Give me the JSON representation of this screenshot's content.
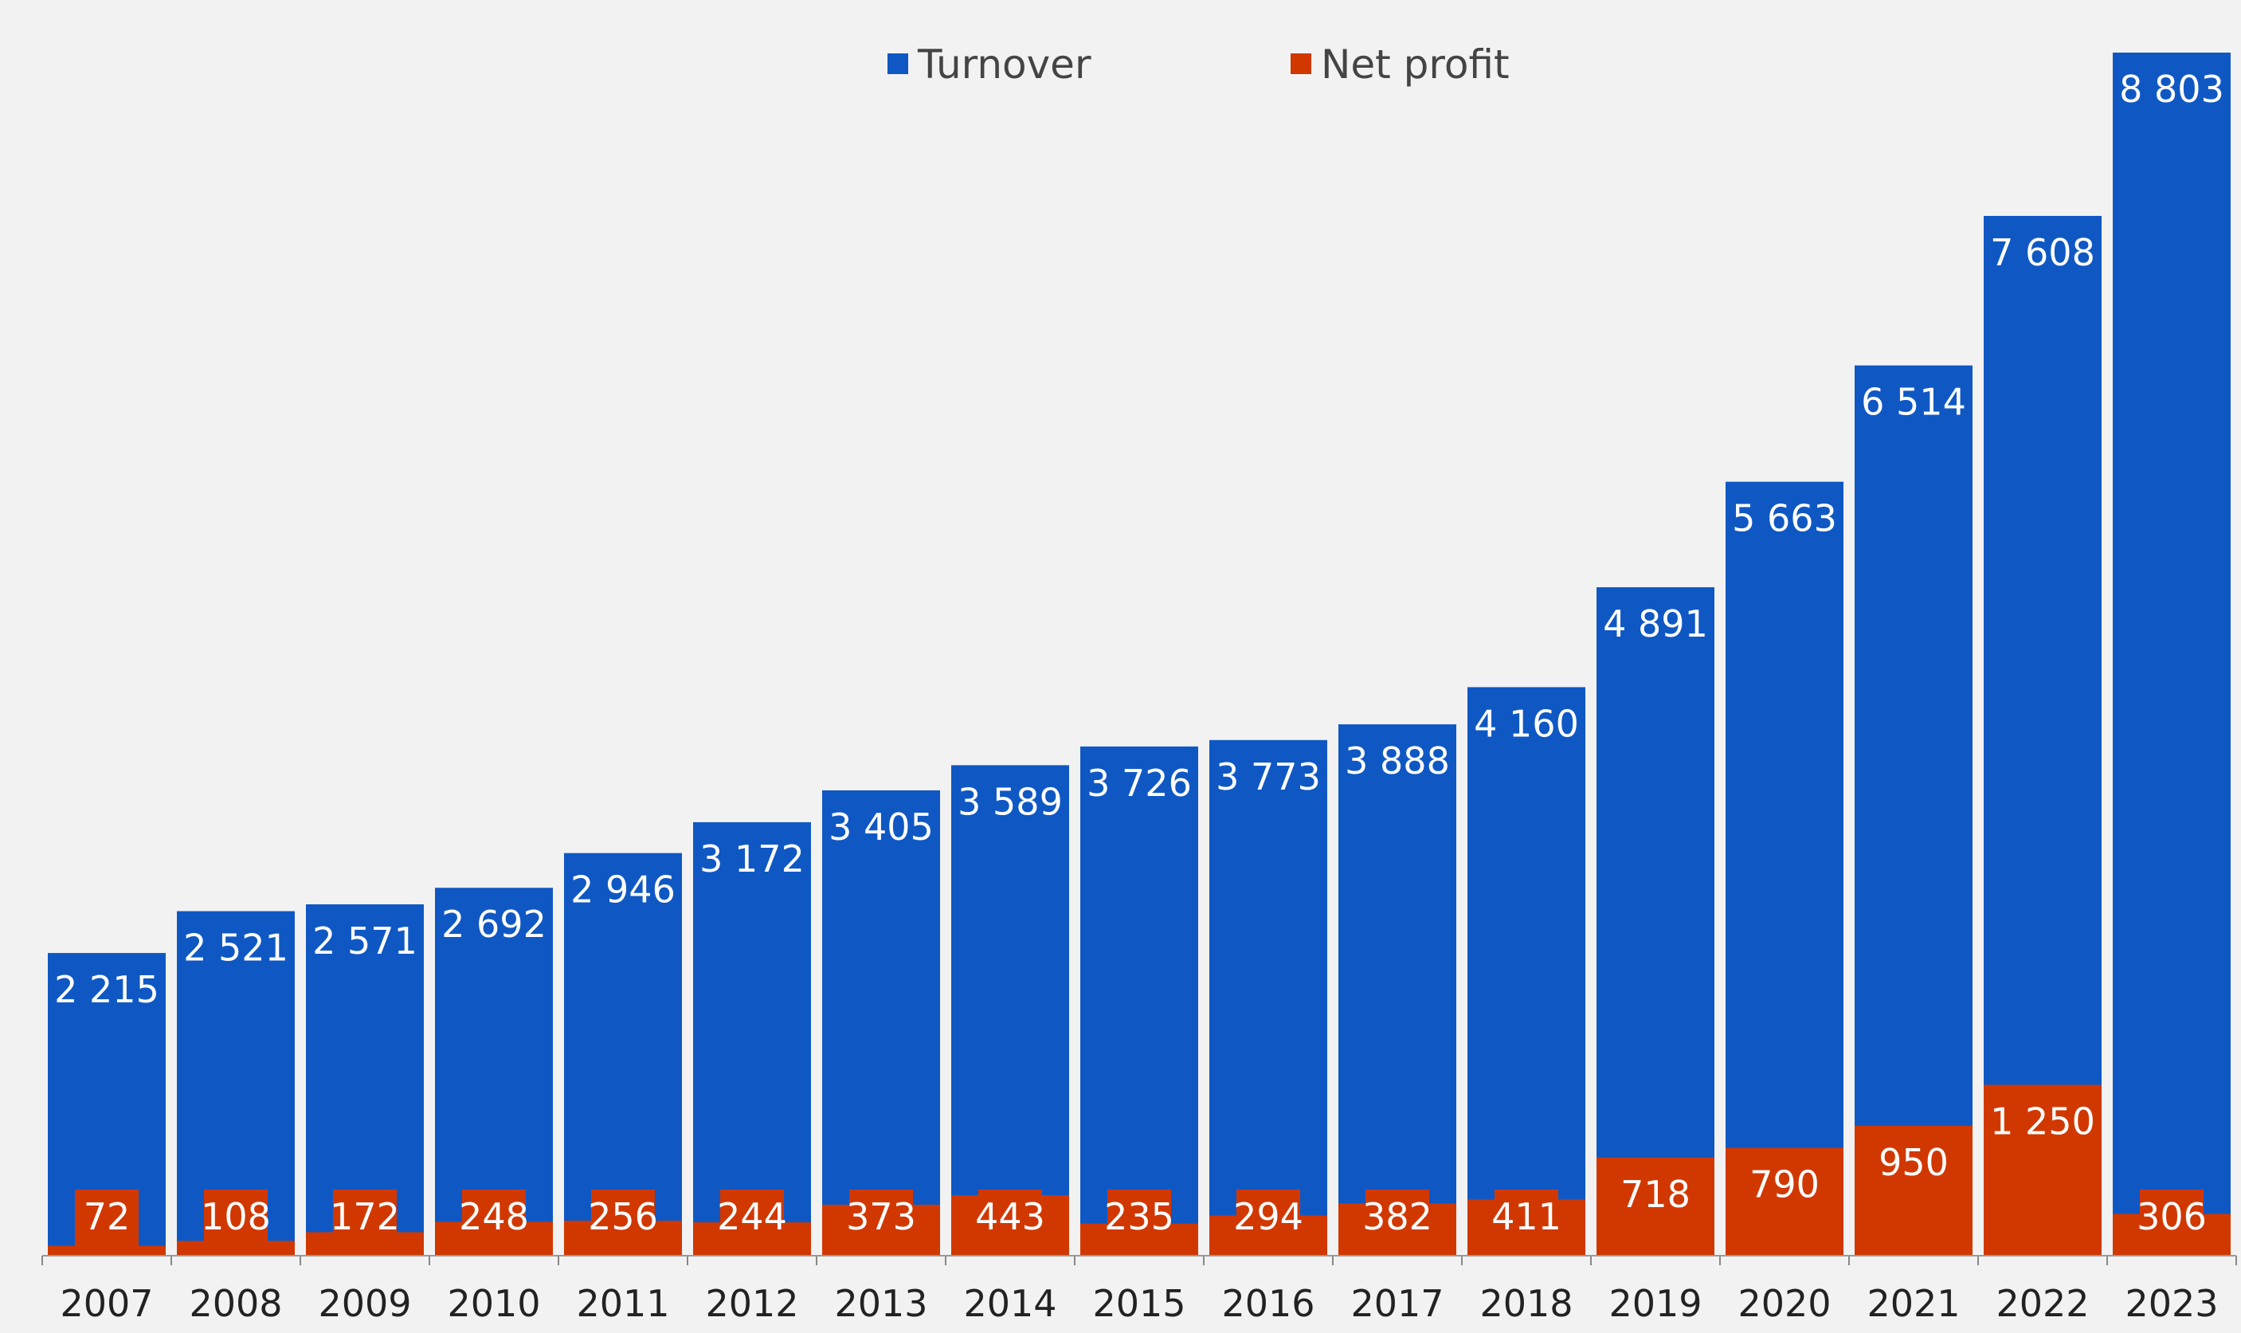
{
  "chart_data": {
    "type": "bar",
    "categories": [
      "2007",
      "2008",
      "2009",
      "2010",
      "2011",
      "2012",
      "2013",
      "2014",
      "2015",
      "2016",
      "2017",
      "2018",
      "2019",
      "2020",
      "2021",
      "2022",
      "2023"
    ],
    "series": [
      {
        "name": "Turnover",
        "color": "#0f58c4",
        "values": [
          2215,
          2521,
          2571,
          2692,
          2946,
          3172,
          3405,
          3589,
          3726,
          3773,
          3888,
          4160,
          4891,
          5663,
          6514,
          7608,
          8803
        ],
        "labels": [
          "2 215",
          "2 521",
          "2 571",
          "2 692",
          "2 946",
          "3 172",
          "3 405",
          "3 589",
          "3 726",
          "3 773",
          "3 888",
          "4 160",
          "4 891",
          "5 663",
          "6 514",
          "7 608",
          "8 803"
        ]
      },
      {
        "name": "Net profit",
        "color": "#d13800",
        "values": [
          72,
          108,
          172,
          248,
          256,
          244,
          373,
          443,
          235,
          294,
          382,
          411,
          718,
          790,
          950,
          1250,
          306
        ],
        "labels": [
          "72",
          "108",
          "172",
          "248",
          "256",
          "244",
          "373",
          "443",
          "235",
          "294",
          "382",
          "411",
          "718",
          "790",
          "950",
          "1 250",
          "306"
        ]
      }
    ],
    "ylim": [
      0,
      8803
    ],
    "overlay": true,
    "grid": false,
    "legend": "top-center"
  }
}
